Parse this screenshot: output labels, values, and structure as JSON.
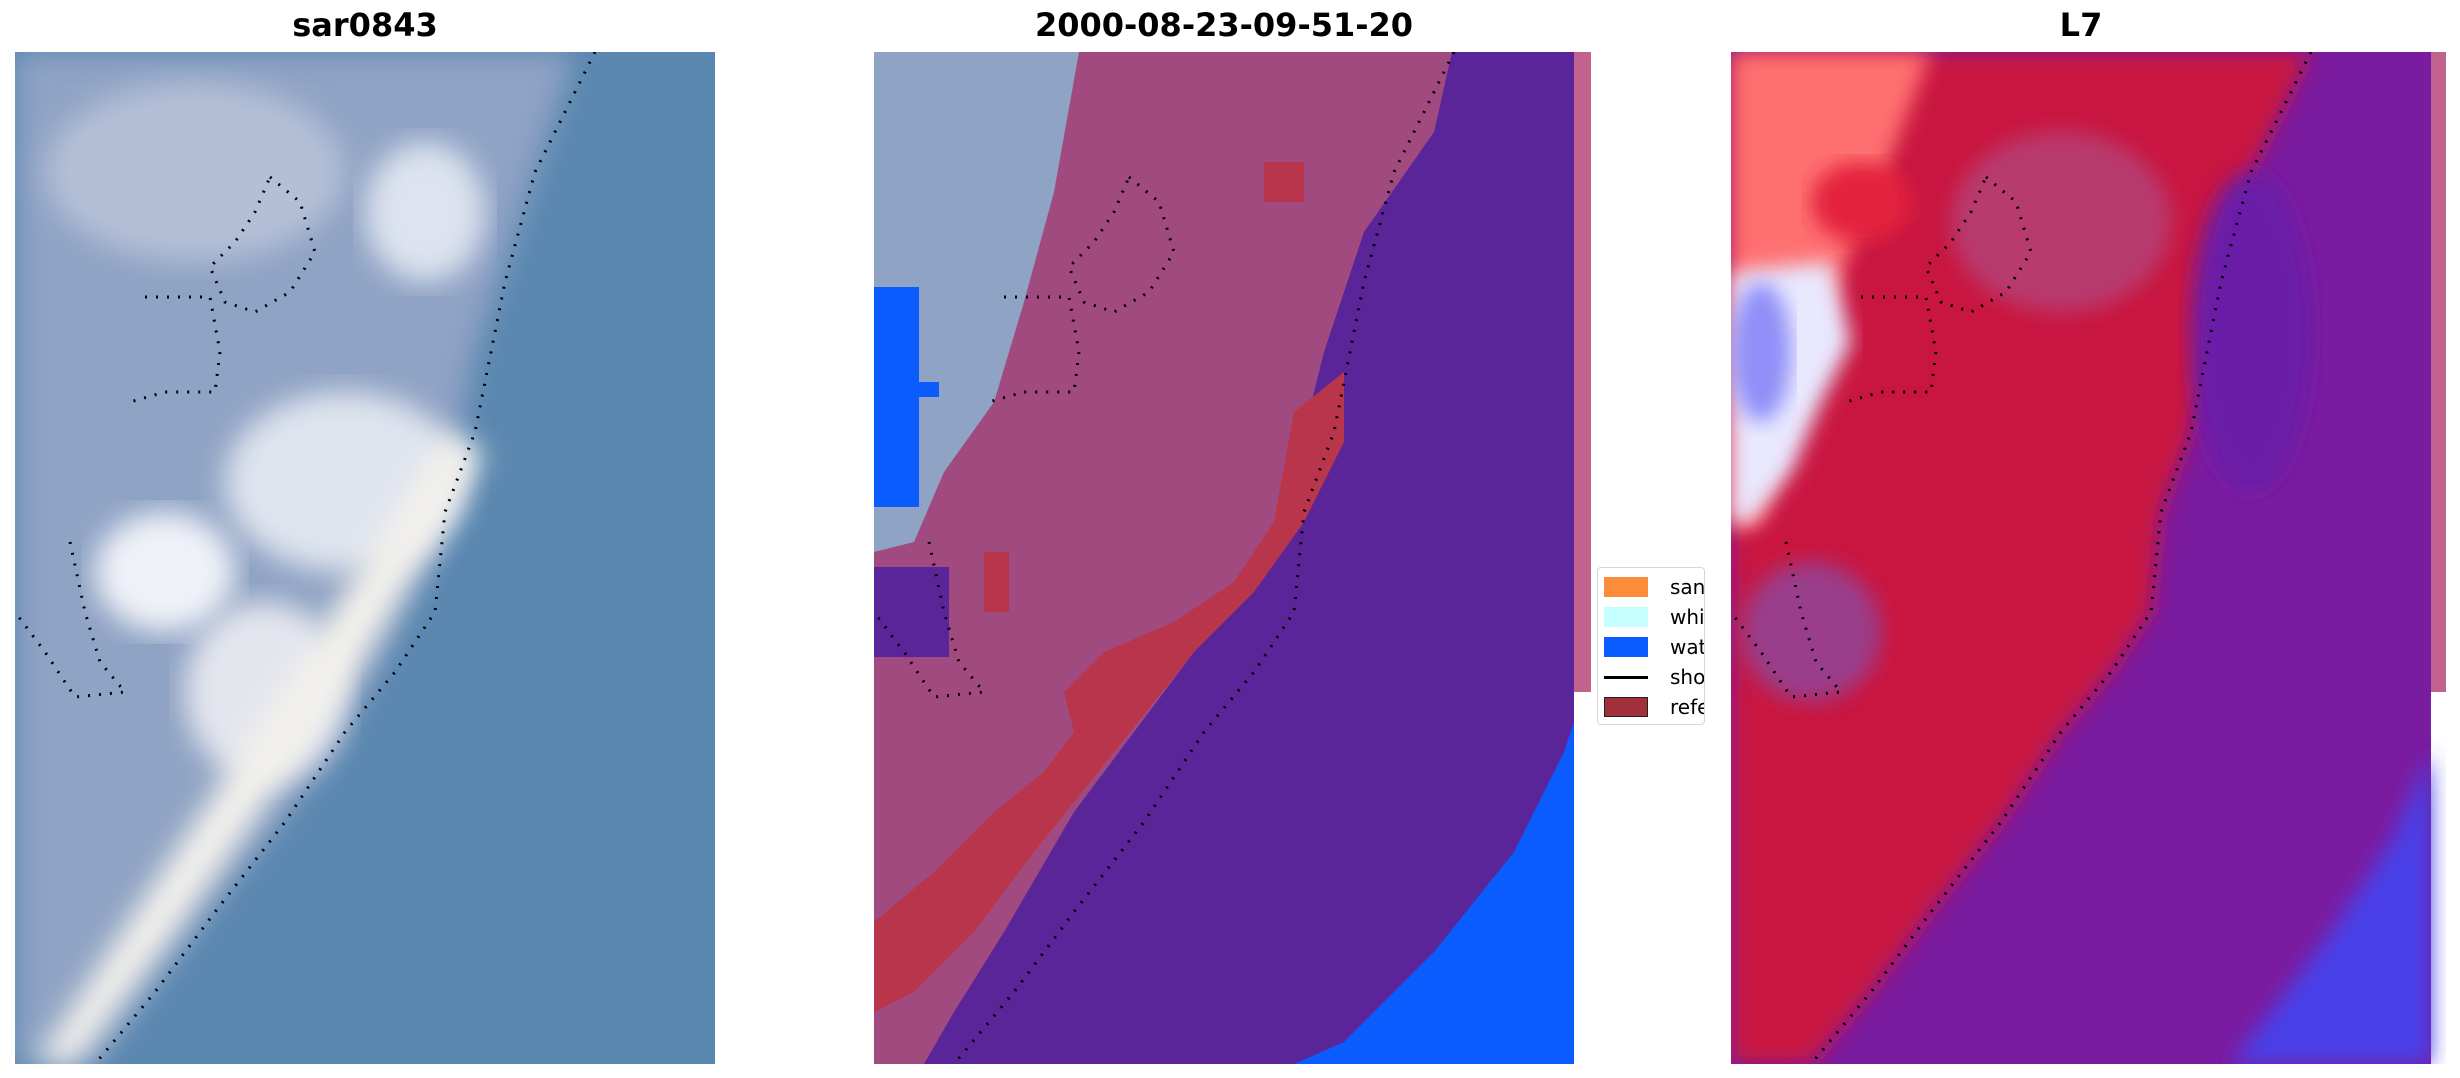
{
  "panels": [
    {
      "title": "sar0843"
    },
    {
      "title": "2000-08-23-09-51-20"
    },
    {
      "title": "L7"
    }
  ],
  "legend": {
    "items": [
      {
        "label": "sand",
        "color": "#fb8c3c"
      },
      {
        "label": "whitewater",
        "color": "#c6ffff"
      },
      {
        "label": "water",
        "color": "#0a5cff"
      },
      {
        "label": "shoreline",
        "color": "#000000"
      },
      {
        "label": "reference",
        "color": "#a1303c"
      }
    ]
  },
  "colors": {
    "ocean_rgb": "#5285ae",
    "land_rgb": "#9fb0cc",
    "sand_rgb": "#eaeaf0",
    "water_class": "#5a2598",
    "land_class": "#a14a7f",
    "reference_class": "#b8354c",
    "water_pixels": "#0a5cff",
    "ndwi_land": "#c9183f",
    "ndwi_water": "#7a1ca0",
    "ndwi_deep": "#4a3fe8",
    "ndwi_sand": "#ff6060"
  }
}
